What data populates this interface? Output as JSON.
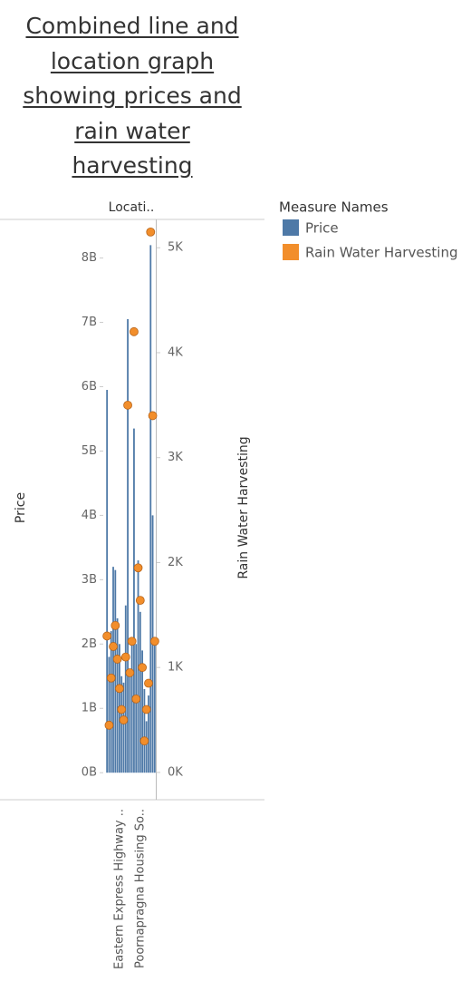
{
  "chart_data": {
    "type": "bar-dot",
    "title": "Combined line and location graph showing prices and rain water harvesting",
    "column_header": "Locati..",
    "x_label": "Location",
    "y_label": "Price",
    "y2_label": "Rain Water Harvesting",
    "legend_title": "Measure Names",
    "categories": [
      null,
      null,
      null,
      null,
      null,
      null,
      "Eastern Express Highway ..",
      null,
      null,
      null,
      null,
      null,
      null,
      null,
      null,
      null,
      "Poornapragna Housing So..",
      null,
      null,
      null,
      null,
      null,
      null,
      null
    ],
    "series": [
      {
        "name": "Price",
        "color": "#4e79a7",
        "mark": "bar",
        "values": [
          5950000000,
          1800000000,
          2200000000,
          3200000000,
          3150000000,
          2400000000,
          2000000000,
          1500000000,
          1400000000,
          2600000000,
          7050000000,
          1600000000,
          2100000000,
          5350000000,
          2000000000,
          3300000000,
          2500000000,
          1900000000,
          1300000000,
          800000000,
          1200000000,
          8200000000,
          4000000000,
          2000000000
        ]
      },
      {
        "name": "Rain Water Harvesting",
        "color": "#f28e2b",
        "mark": "dot",
        "axis": "y2",
        "values": [
          1300,
          450,
          900,
          1200,
          1400,
          1080,
          800,
          600,
          500,
          1100,
          3500,
          950,
          1250,
          4200,
          700,
          1950,
          1640,
          1000,
          300,
          600,
          850,
          5150,
          3400,
          1250
        ]
      }
    ],
    "ylim": [
      -420000000,
      8600000000
    ],
    "yticks": [
      {
        "value": 0,
        "label": "0B"
      },
      {
        "value": 1000000000,
        "label": "1B"
      },
      {
        "value": 2000000000,
        "label": "2B"
      },
      {
        "value": 3000000000,
        "label": "3B"
      },
      {
        "value": 4000000000,
        "label": "4B"
      },
      {
        "value": 5000000000,
        "label": "5B"
      },
      {
        "value": 6000000000,
        "label": "6B"
      },
      {
        "value": 7000000000,
        "label": "7B"
      },
      {
        "value": 8000000000,
        "label": "8B"
      }
    ],
    "y2lim": [
      -260,
      5270
    ],
    "y2ticks": [
      {
        "value": 0,
        "label": "0K"
      },
      {
        "value": 1000,
        "label": "1K"
      },
      {
        "value": 2000,
        "label": "2K"
      },
      {
        "value": 3000,
        "label": "3K"
      },
      {
        "value": 4000,
        "label": "4K"
      },
      {
        "value": 5000,
        "label": "5K"
      }
    ],
    "grid": false,
    "legend_position": "right"
  }
}
